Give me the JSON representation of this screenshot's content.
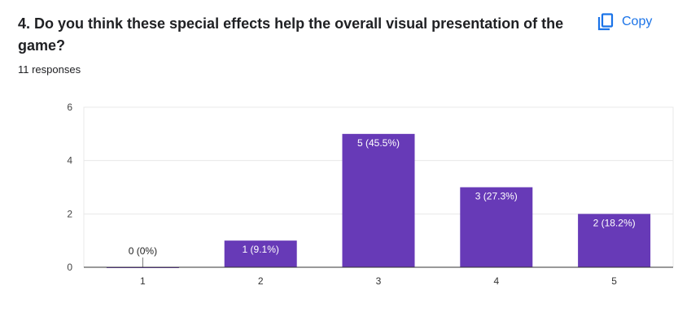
{
  "question": {
    "title": "4. Do you think these special effects help the overall visual presentation of the game?",
    "responses": "11 responses"
  },
  "actions": {
    "copy_label": "Copy",
    "copy_icon": "copy-icon"
  },
  "colors": {
    "bar": "#673ab7",
    "accent": "#1a73e8",
    "text": "#202124",
    "grid": "#e8e8e8"
  },
  "chart_data": {
    "type": "bar",
    "categories": [
      "1",
      "2",
      "3",
      "4",
      "5"
    ],
    "values": [
      0,
      1,
      5,
      3,
      2
    ],
    "data_labels": [
      "0 (0%)",
      "1 (9.1%)",
      "5 (45.5%)",
      "3 (27.3%)",
      "2 (18.2%)"
    ],
    "ylim": [
      0,
      6
    ],
    "yticks": [
      "0",
      "2",
      "4",
      "6"
    ],
    "grid": true,
    "title": "",
    "xlabel": "",
    "ylabel": ""
  }
}
